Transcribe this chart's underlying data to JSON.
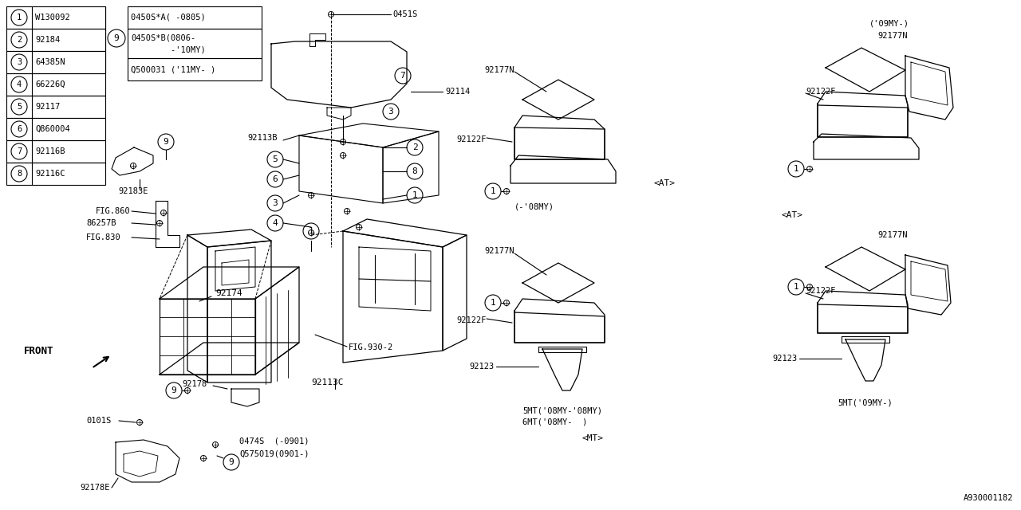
{
  "bg_color": "#ffffff",
  "line_color": "#000000",
  "image_id": "A930001182",
  "table_rows": [
    [
      1,
      "W130092"
    ],
    [
      2,
      "92184"
    ],
    [
      3,
      "64385N"
    ],
    [
      4,
      "66226Q"
    ],
    [
      5,
      "92117"
    ],
    [
      6,
      "Q860004"
    ],
    [
      7,
      "92116B"
    ],
    [
      8,
      "92116C"
    ]
  ],
  "table_col2_num": 9,
  "table_col2_entries": [
    "0450S*A( -0805)",
    "0450S*B(0806-",
    "        -'10MY)",
    "Q500031 ('11MY- )"
  ]
}
